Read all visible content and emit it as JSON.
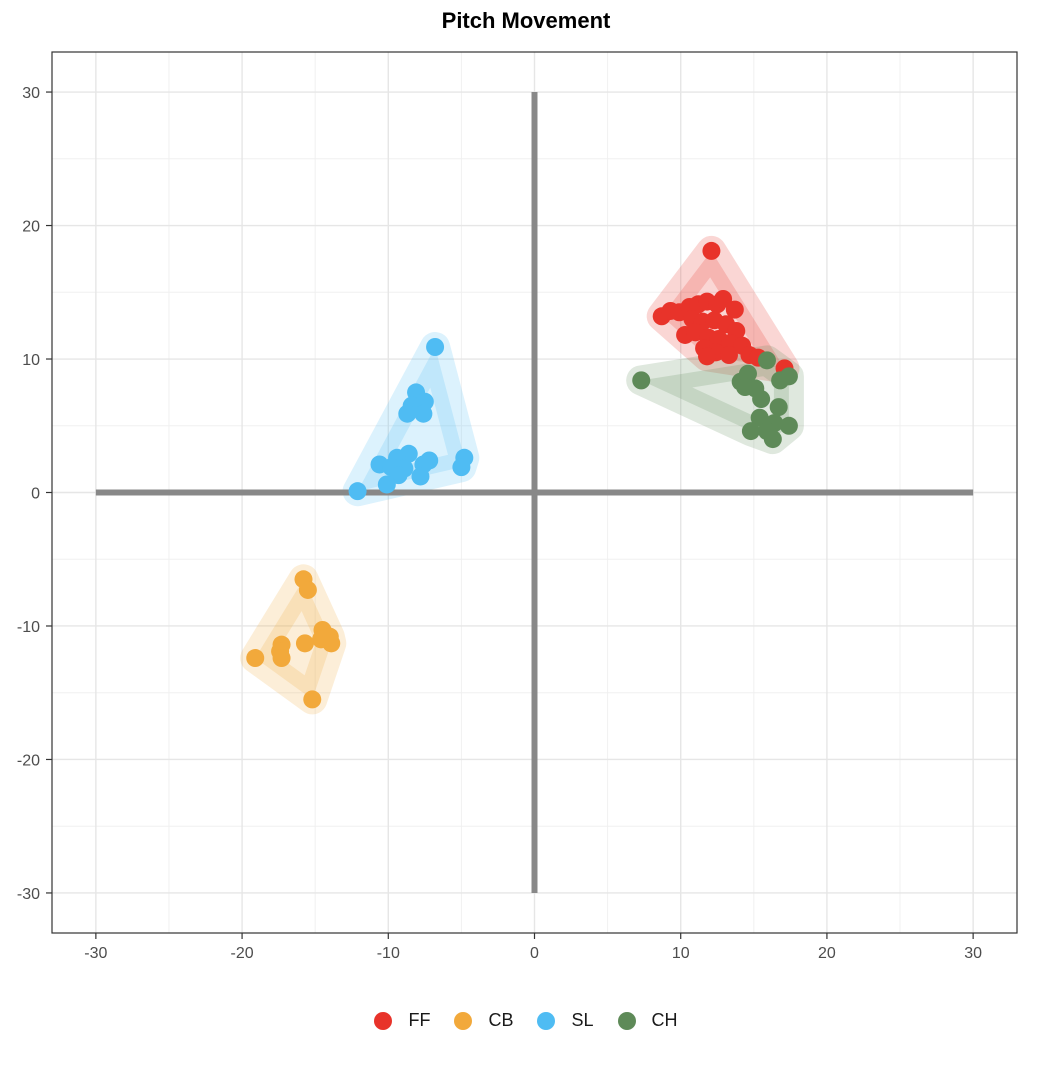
{
  "chart_data": {
    "type": "scatter",
    "title": "Pitch Movement",
    "xlabel": "",
    "ylabel": "",
    "xlim": [
      -33,
      33
    ],
    "ylim": [
      -33,
      33
    ],
    "xticks": [
      -30,
      -20,
      -10,
      0,
      10,
      20,
      30
    ],
    "yticks": [
      30,
      20,
      10,
      0,
      -10,
      -20,
      -30
    ],
    "reference_lines": {
      "x": 0,
      "y": 0,
      "extent": [
        -30,
        30
      ]
    },
    "grid": true,
    "legend_position": "bottom",
    "series": [
      {
        "name": "FF",
        "color": "#e8332a",
        "points": [
          [
            12.1,
            18.1
          ],
          [
            8.7,
            13.2
          ],
          [
            9.3,
            13.6
          ],
          [
            9.9,
            13.5
          ],
          [
            10.6,
            13.9
          ],
          [
            11.2,
            14.1
          ],
          [
            11.8,
            14.3
          ],
          [
            12.5,
            14.1
          ],
          [
            12.9,
            14.5
          ],
          [
            13.7,
            13.7
          ],
          [
            10.8,
            13.0
          ],
          [
            11.5,
            12.8
          ],
          [
            12.3,
            12.9
          ],
          [
            13.1,
            12.6
          ],
          [
            13.8,
            12.1
          ],
          [
            10.3,
            11.8
          ],
          [
            11.0,
            12.0
          ],
          [
            11.9,
            11.6
          ],
          [
            12.6,
            11.5
          ],
          [
            13.4,
            11.2
          ],
          [
            14.2,
            11.0
          ],
          [
            11.6,
            10.8
          ],
          [
            12.4,
            10.5
          ],
          [
            13.3,
            10.3
          ],
          [
            14.7,
            10.3
          ],
          [
            15.3,
            10.1
          ],
          [
            11.8,
            10.2
          ],
          [
            17.1,
            9.3
          ]
        ]
      },
      {
        "name": "CB",
        "color": "#f2a93b",
        "points": [
          [
            -15.8,
            -6.5
          ],
          [
            -15.5,
            -7.3
          ],
          [
            -14.5,
            -10.3
          ],
          [
            -14.0,
            -10.8
          ],
          [
            -13.9,
            -11.3
          ],
          [
            -14.6,
            -11.0
          ],
          [
            -15.7,
            -11.3
          ],
          [
            -17.3,
            -11.4
          ],
          [
            -17.4,
            -11.9
          ],
          [
            -17.3,
            -12.4
          ],
          [
            -19.1,
            -12.4
          ],
          [
            -15.2,
            -15.5
          ]
        ]
      },
      {
        "name": "SL",
        "color": "#4fbcf3",
        "points": [
          [
            -6.8,
            10.9
          ],
          [
            -8.1,
            7.5
          ],
          [
            -7.5,
            6.8
          ],
          [
            -8.4,
            6.5
          ],
          [
            -8.7,
            5.9
          ],
          [
            -7.6,
            5.9
          ],
          [
            -8.6,
            2.9
          ],
          [
            -9.4,
            2.6
          ],
          [
            -4.8,
            2.6
          ],
          [
            -7.2,
            2.4
          ],
          [
            -7.6,
            2.1
          ],
          [
            -10.6,
            2.1
          ],
          [
            -9.8,
            1.9
          ],
          [
            -8.9,
            1.8
          ],
          [
            -5.0,
            1.9
          ],
          [
            -9.3,
            1.3
          ],
          [
            -7.8,
            1.2
          ],
          [
            -10.1,
            0.6
          ],
          [
            -12.1,
            0.1
          ]
        ]
      },
      {
        "name": "CH",
        "color": "#5e8a58",
        "points": [
          [
            7.3,
            8.4
          ],
          [
            15.9,
            9.9
          ],
          [
            14.6,
            8.9
          ],
          [
            14.1,
            8.3
          ],
          [
            16.8,
            8.4
          ],
          [
            17.4,
            8.7
          ],
          [
            14.4,
            7.9
          ],
          [
            15.1,
            7.8
          ],
          [
            15.5,
            7.0
          ],
          [
            16.7,
            6.4
          ],
          [
            15.4,
            5.6
          ],
          [
            16.4,
            5.2
          ],
          [
            17.4,
            5.0
          ],
          [
            14.8,
            4.6
          ],
          [
            15.9,
            4.6
          ],
          [
            16.3,
            4.0
          ]
        ]
      }
    ]
  }
}
